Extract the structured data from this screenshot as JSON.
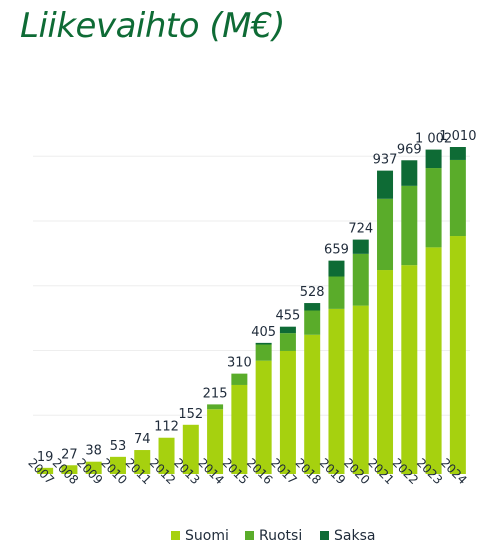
{
  "chart_data": {
    "type": "bar",
    "stacked": true,
    "title": "Liikevaihto (M€)",
    "categories": [
      "2007",
      "2008",
      "2009",
      "2010",
      "2011",
      "2012",
      "2013",
      "2014",
      "2015",
      "2016",
      "2017",
      "2018",
      "2019",
      "2020",
      "2021",
      "2022",
      "2023",
      "2024"
    ],
    "totals": [
      19,
      27,
      38,
      53,
      74,
      112,
      152,
      215,
      310,
      405,
      455,
      528,
      659,
      724,
      937,
      969,
      1002,
      1010
    ],
    "total_labels": [
      "19",
      "27",
      "38",
      "53",
      "74",
      "112",
      "152",
      "215",
      "310",
      "405",
      "455",
      "528",
      "659",
      "724",
      "937",
      "969",
      "1 002",
      "1 010"
    ],
    "series": [
      {
        "name": "Suomi",
        "color": "#a6d10f",
        "values": [
          19,
          27,
          38,
          53,
          74,
          112,
          152,
          200,
          275,
          350,
          380,
          430,
          510,
          520,
          630,
          645,
          700,
          735
        ]
      },
      {
        "name": "Ruotsi",
        "color": "#5aac2a",
        "values": [
          0,
          0,
          0,
          0,
          0,
          0,
          0,
          15,
          35,
          50,
          55,
          75,
          100,
          160,
          220,
          245,
          245,
          235
        ]
      },
      {
        "name": "Saksa",
        "color": "#0e6b35",
        "values": [
          0,
          0,
          0,
          0,
          0,
          0,
          0,
          0,
          0,
          5,
          20,
          23,
          49,
          44,
          87,
          79,
          57,
          40
        ]
      }
    ],
    "ylim": [
      0,
      1100
    ],
    "grid": true,
    "legend": "bottom"
  }
}
